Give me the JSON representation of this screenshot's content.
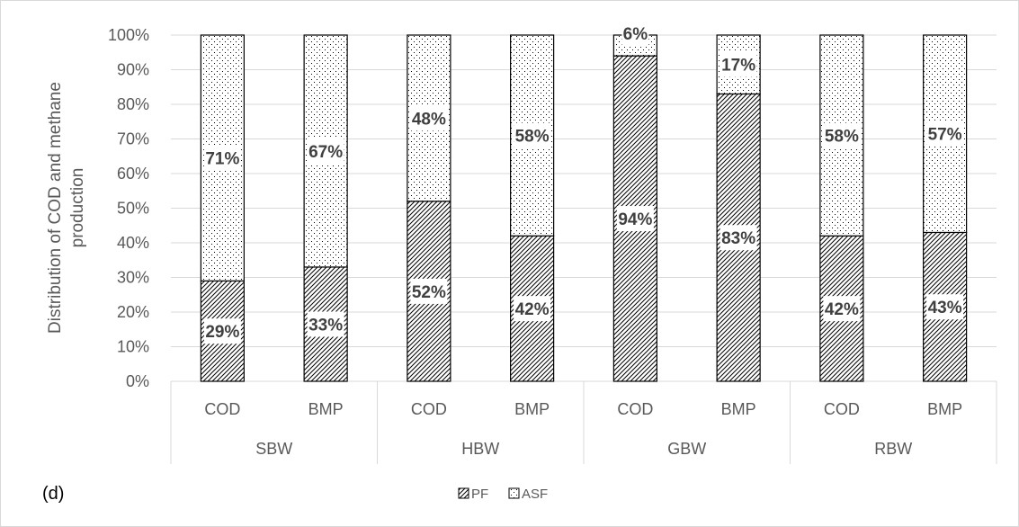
{
  "chart_data": {
    "type": "bar",
    "stacked": true,
    "percent": true,
    "panel_label": "(d)",
    "ylabel": "Distribution of COD and methane production",
    "ylim": [
      0,
      100
    ],
    "y_ticks": [
      "0%",
      "10%",
      "20%",
      "30%",
      "40%",
      "50%",
      "60%",
      "70%",
      "80%",
      "90%",
      "100%"
    ],
    "groups": [
      "SBW",
      "HBW",
      "GBW",
      "RBW"
    ],
    "categories": [
      "COD",
      "BMP",
      "COD",
      "BMP",
      "COD",
      "BMP",
      "COD",
      "BMP"
    ],
    "series": [
      {
        "name": "PF",
        "pattern": "diagonal-hatch",
        "values": [
          29,
          33,
          52,
          42,
          94,
          83,
          42,
          43
        ],
        "labels": [
          "29%",
          "33%",
          "52%",
          "42%",
          "94%",
          "83%",
          "42%",
          "43%"
        ]
      },
      {
        "name": "ASF",
        "pattern": "dots",
        "values": [
          71,
          67,
          48,
          58,
          6,
          17,
          58,
          57
        ],
        "labels": [
          "71%",
          "67%",
          "48%",
          "58%",
          "6%",
          "17%",
          "58%",
          "57%"
        ]
      }
    ],
    "grid": true,
    "legend_position": "bottom",
    "colors": {
      "grid": "#d9d9d9",
      "text": "#595959",
      "bar_stroke": "#000000",
      "label": "#404040"
    }
  }
}
